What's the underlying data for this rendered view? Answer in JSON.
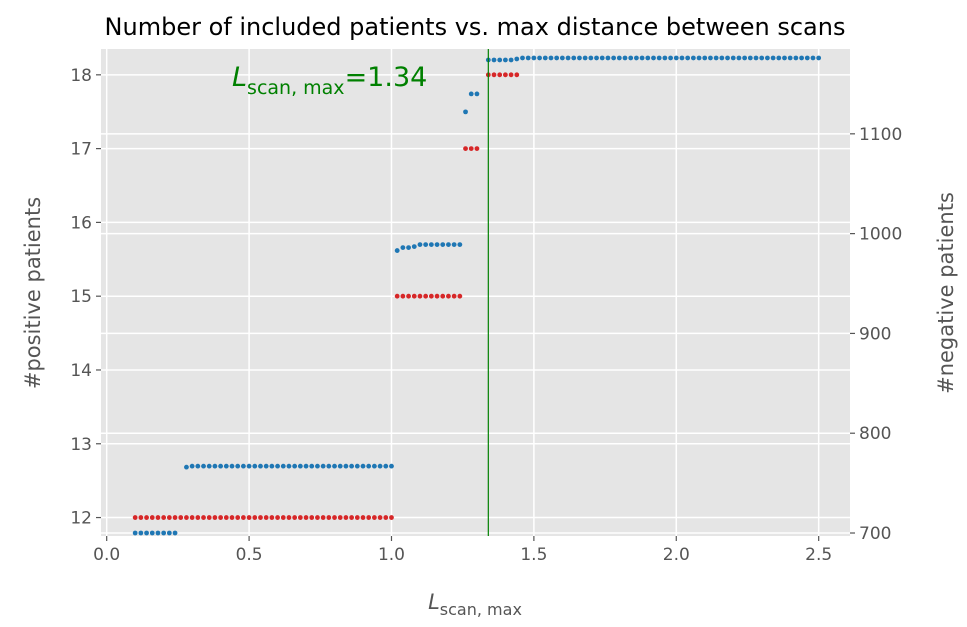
{
  "chart_data": {
    "type": "scatter",
    "title": "Number of included patients vs. max distance between scans",
    "xlabel": "L",
    "xlabel_sub": "scan, max",
    "ylabel": "#positive patients",
    "y2label": "#negative patients",
    "xlim": [
      -0.02,
      2.61
    ],
    "ylim": [
      11.75,
      18.35
    ],
    "y2lim": [
      697,
      1185
    ],
    "xticks": [
      0.0,
      0.5,
      1.0,
      1.5,
      2.0,
      2.5
    ],
    "xtick_labels": [
      "0.0",
      "0.5",
      "1.0",
      "1.5",
      "2.0",
      "2.5"
    ],
    "yticks": [
      12,
      13,
      14,
      15,
      16,
      17,
      18
    ],
    "ytick_labels": [
      "12",
      "13",
      "14",
      "15",
      "16",
      "17",
      "18"
    ],
    "y2ticks": [
      700,
      800,
      900,
      1000,
      1100
    ],
    "y2tick_labels": [
      "700",
      "800",
      "900",
      "1000",
      "1100"
    ],
    "grid": true,
    "vline": {
      "x": 1.34,
      "color": "#008000"
    },
    "annotation": {
      "prefix": "L",
      "sub": "scan, max",
      "suffix": "=1.34",
      "color": "#008000"
    },
    "series": [
      {
        "axis": "left",
        "color": "#d62728",
        "segments": [
          {
            "x_start": 0.1,
            "x_end": 1.0,
            "step": 0.02,
            "y": 12
          },
          {
            "x_start": 1.02,
            "x_end": 1.24,
            "step": 0.02,
            "y": 15
          },
          {
            "x_start": 1.26,
            "x_end": 1.3,
            "step": 0.02,
            "y": 17
          },
          {
            "x_start": 1.34,
            "x_end": 1.44,
            "step": 0.02,
            "y": 18
          }
        ]
      },
      {
        "axis": "right",
        "color": "#1f77b4",
        "points": [
          [
            0.1,
            700
          ],
          [
            0.12,
            700
          ],
          [
            0.14,
            700
          ],
          [
            0.16,
            700
          ],
          [
            0.18,
            700
          ],
          [
            0.2,
            700
          ],
          [
            0.22,
            700
          ],
          [
            0.24,
            700
          ],
          [
            0.28,
            766
          ],
          [
            0.3,
            767
          ],
          [
            0.32,
            767
          ],
          [
            0.34,
            767
          ],
          [
            0.36,
            767
          ],
          [
            0.38,
            767
          ],
          [
            0.4,
            767
          ],
          [
            0.42,
            767
          ],
          [
            0.44,
            767
          ],
          [
            0.46,
            767
          ],
          [
            0.48,
            767
          ],
          [
            0.5,
            767
          ],
          [
            0.52,
            767
          ],
          [
            0.54,
            767
          ],
          [
            0.56,
            767
          ],
          [
            0.58,
            767
          ],
          [
            0.6,
            767
          ],
          [
            0.62,
            767
          ],
          [
            0.64,
            767
          ],
          [
            0.66,
            767
          ],
          [
            0.68,
            767
          ],
          [
            0.7,
            767
          ],
          [
            0.72,
            767
          ],
          [
            0.74,
            767
          ],
          [
            0.76,
            767
          ],
          [
            0.78,
            767
          ],
          [
            0.8,
            767
          ],
          [
            0.82,
            767
          ],
          [
            0.84,
            767
          ],
          [
            0.86,
            767
          ],
          [
            0.88,
            767
          ],
          [
            0.9,
            767
          ],
          [
            0.92,
            767
          ],
          [
            0.94,
            767
          ],
          [
            0.96,
            767
          ],
          [
            0.98,
            767
          ],
          [
            1.0,
            767
          ],
          [
            1.02,
            983
          ],
          [
            1.04,
            986
          ],
          [
            1.06,
            986
          ],
          [
            1.08,
            987
          ],
          [
            1.1,
            989
          ],
          [
            1.12,
            989
          ],
          [
            1.14,
            989
          ],
          [
            1.16,
            989
          ],
          [
            1.18,
            989
          ],
          [
            1.2,
            989
          ],
          [
            1.22,
            989
          ],
          [
            1.24,
            989
          ],
          [
            1.26,
            1122
          ],
          [
            1.28,
            1140
          ],
          [
            1.3,
            1140
          ],
          [
            1.34,
            1174
          ],
          [
            1.36,
            1174
          ],
          [
            1.38,
            1174
          ],
          [
            1.4,
            1174
          ],
          [
            1.42,
            1174
          ],
          [
            1.44,
            1175
          ],
          [
            1.46,
            1176
          ],
          [
            1.48,
            1176
          ],
          [
            1.5,
            1176
          ],
          [
            1.52,
            1176
          ],
          [
            1.54,
            1176
          ],
          [
            1.56,
            1176
          ],
          [
            1.58,
            1176
          ],
          [
            1.6,
            1176
          ],
          [
            1.62,
            1176
          ],
          [
            1.64,
            1176
          ],
          [
            1.66,
            1176
          ],
          [
            1.68,
            1176
          ],
          [
            1.7,
            1176
          ],
          [
            1.72,
            1176
          ],
          [
            1.74,
            1176
          ],
          [
            1.76,
            1176
          ],
          [
            1.78,
            1176
          ],
          [
            1.8,
            1176
          ],
          [
            1.82,
            1176
          ],
          [
            1.84,
            1176
          ],
          [
            1.86,
            1176
          ],
          [
            1.88,
            1176
          ],
          [
            1.9,
            1176
          ],
          [
            1.92,
            1176
          ],
          [
            1.94,
            1176
          ],
          [
            1.96,
            1176
          ],
          [
            1.98,
            1176
          ],
          [
            2.0,
            1176
          ],
          [
            2.02,
            1176
          ],
          [
            2.04,
            1176
          ],
          [
            2.06,
            1176
          ],
          [
            2.08,
            1176
          ],
          [
            2.1,
            1176
          ],
          [
            2.12,
            1176
          ],
          [
            2.14,
            1176
          ],
          [
            2.16,
            1176
          ],
          [
            2.18,
            1176
          ],
          [
            2.2,
            1176
          ],
          [
            2.22,
            1176
          ],
          [
            2.24,
            1176
          ],
          [
            2.26,
            1176
          ],
          [
            2.28,
            1176
          ],
          [
            2.3,
            1176
          ],
          [
            2.32,
            1176
          ],
          [
            2.34,
            1176
          ],
          [
            2.36,
            1176
          ],
          [
            2.38,
            1176
          ],
          [
            2.4,
            1176
          ],
          [
            2.42,
            1176
          ],
          [
            2.44,
            1176
          ],
          [
            2.46,
            1176
          ],
          [
            2.48,
            1176
          ],
          [
            2.5,
            1176
          ]
        ]
      }
    ]
  }
}
